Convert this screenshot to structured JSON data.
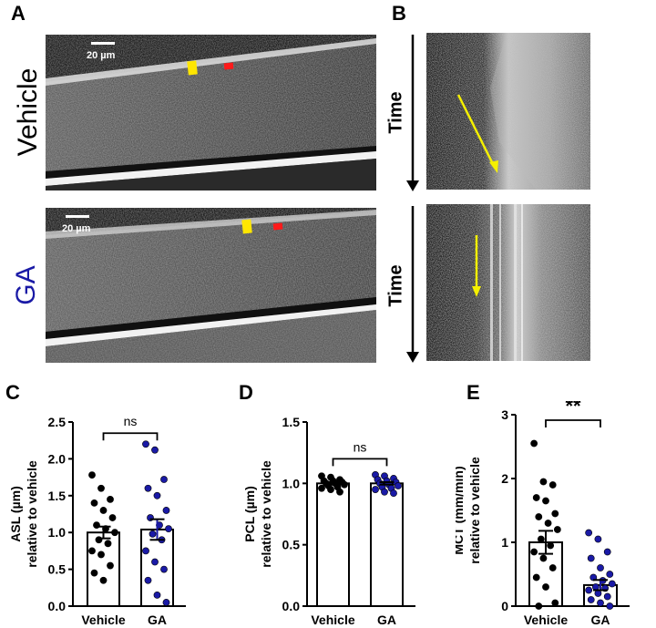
{
  "panels": {
    "A": "A",
    "B": "B",
    "C": "C",
    "D": "D",
    "E": "E"
  },
  "conditions": {
    "vehicle": "Vehicle",
    "ga": "GA",
    "vehicle_color": "#000000",
    "ga_color": "#1a1aa6"
  },
  "scalebar": {
    "label": "20 µm"
  },
  "kymograph": {
    "time_label": "Time",
    "arrow_color": "#f5f000"
  },
  "markers": {
    "yellow": "#ffe600",
    "red": "#ff1a1a"
  },
  "chart_data": [
    {
      "panel": "C",
      "type": "bar",
      "categories": [
        "Vehicle",
        "GA"
      ],
      "values": [
        1.0,
        1.04
      ],
      "sem": [
        0.08,
        0.14
      ],
      "ylabel_line1": "ASL (µm)",
      "ylabel_line2": "relative to vehicle",
      "ylim": [
        0,
        2.5
      ],
      "yticks": [
        "0.0",
        "0.5",
        "1.0",
        "1.5",
        "2.0",
        "2.5"
      ],
      "significance": "ns",
      "points": [
        [
          1.78,
          1.6,
          1.45,
          1.4,
          1.3,
          1.2,
          1.1,
          1.05,
          1.0,
          0.9,
          0.85,
          0.75,
          0.7,
          0.55,
          0.45,
          0.35
        ],
        [
          2.2,
          2.12,
          1.72,
          1.6,
          1.5,
          1.3,
          1.2,
          1.1,
          1.05,
          0.98,
          0.9,
          0.75,
          0.6,
          0.5,
          0.35,
          0.15,
          0.05
        ]
      ],
      "point_colors": [
        "#000000",
        "#1a1aa6"
      ]
    },
    {
      "panel": "D",
      "type": "bar",
      "categories": [
        "Vehicle",
        "GA"
      ],
      "values": [
        1.0,
        1.0
      ],
      "sem": [
        0.01,
        0.01
      ],
      "ylabel_line1": "PCL (µm)",
      "ylabel_line2": "relative to vehicle",
      "ylim": [
        0,
        1.5
      ],
      "yticks": [
        "0.0",
        "0.5",
        "1.0",
        "1.5"
      ],
      "significance": "ns",
      "points": [
        [
          1.06,
          1.05,
          1.03,
          1.02,
          1.02,
          1.01,
          1.0,
          1.0,
          0.99,
          0.98,
          0.97,
          0.96,
          0.95,
          0.93
        ],
        [
          1.07,
          1.06,
          1.04,
          1.03,
          1.02,
          1.01,
          1.0,
          0.99,
          0.98,
          0.97,
          0.96,
          0.95,
          0.93,
          0.92
        ]
      ],
      "point_colors": [
        "#000000",
        "#1a1aa6"
      ]
    },
    {
      "panel": "E",
      "type": "bar",
      "categories": [
        "Vehicle",
        "GA"
      ],
      "values": [
        1.0,
        0.33
      ],
      "sem": [
        0.18,
        0.08
      ],
      "ylabel_line1": "MCT (mm/min)",
      "ylabel_line2": "relative to vehicle",
      "ylim": [
        0,
        3
      ],
      "yticks": [
        "0",
        "1",
        "2",
        "3"
      ],
      "significance": "**",
      "points": [
        [
          2.55,
          1.95,
          1.9,
          1.7,
          1.65,
          1.45,
          1.4,
          1.3,
          1.2,
          1.05,
          0.95,
          0.85,
          0.75,
          0.6,
          0.45,
          0.3,
          0.05,
          0.0
        ],
        [
          1.15,
          1.05,
          0.85,
          0.75,
          0.6,
          0.5,
          0.45,
          0.4,
          0.35,
          0.3,
          0.28,
          0.25,
          0.2,
          0.15,
          0.1,
          0.05,
          0.0
        ]
      ],
      "point_colors": [
        "#000000",
        "#1a1aa6"
      ]
    }
  ]
}
